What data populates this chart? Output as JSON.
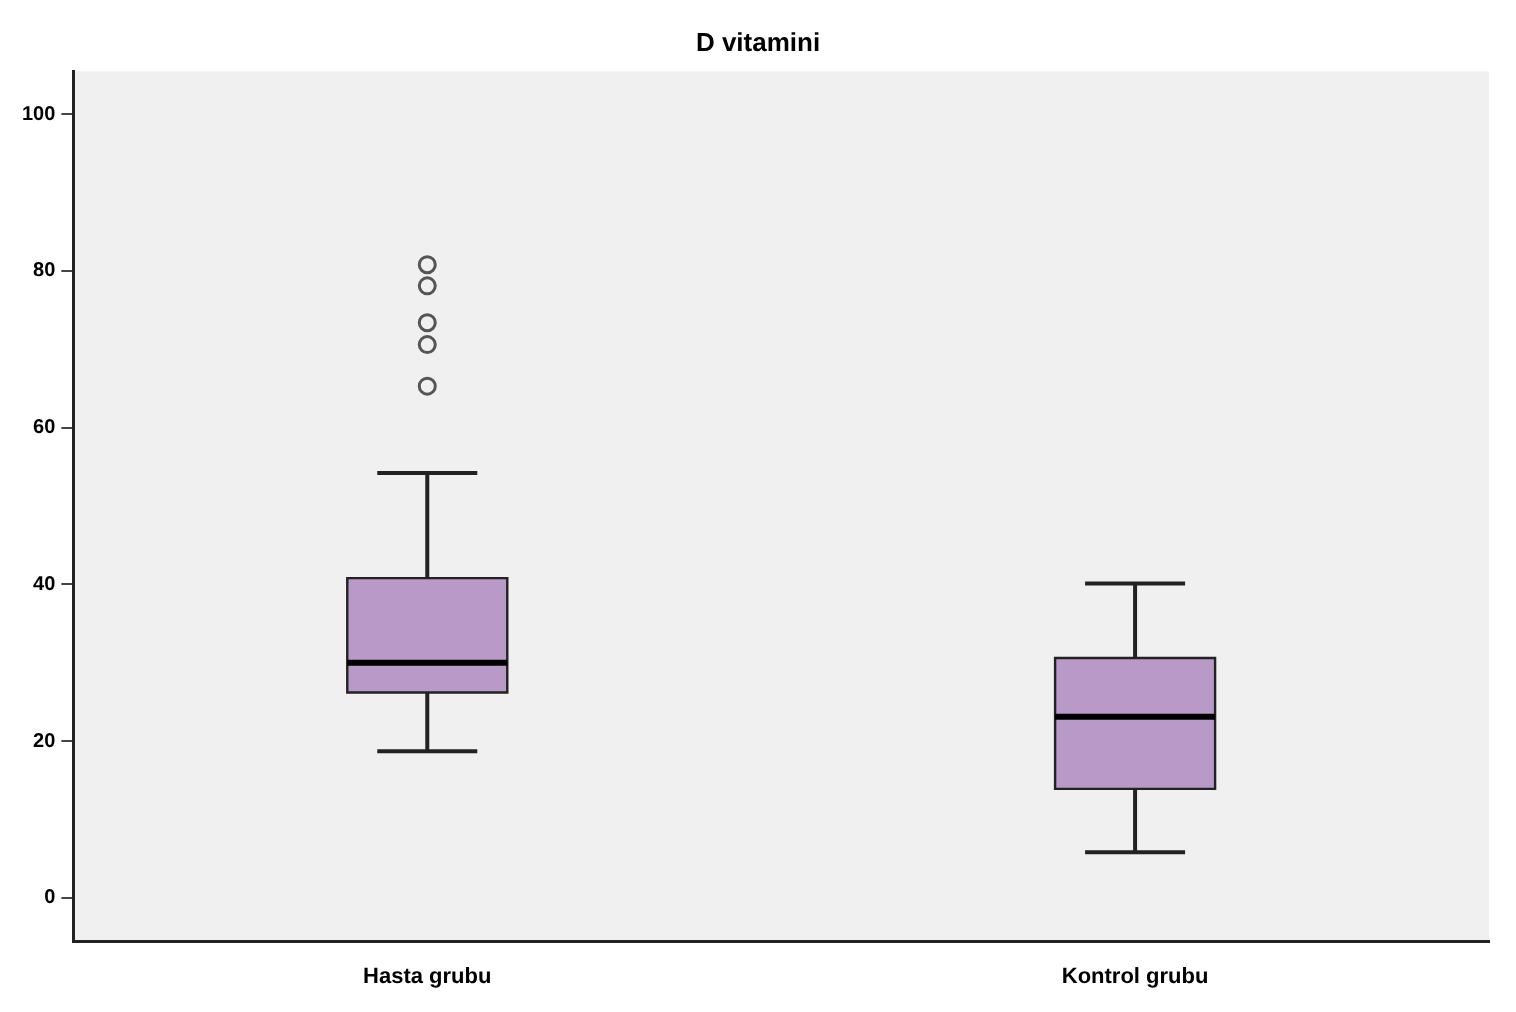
{
  "chart_data": {
    "type": "box",
    "title": "D vitamini",
    "categories": [
      "Hasta grubu",
      "Kontrol grubu"
    ],
    "color": "#b899c8",
    "boxes": [
      {
        "low": 18.7,
        "q1": 26.2,
        "median": 30.0,
        "q3": 40.8,
        "high": 54.2,
        "outliers": [
          65.3,
          70.6,
          73.4,
          78.1,
          80.8
        ]
      },
      {
        "low": 5.8,
        "q1": 13.9,
        "median": 23.1,
        "q3": 30.6,
        "high": 40.1
      }
    ],
    "ylim": [
      -5.6,
      105.5
    ],
    "yticks": [
      0,
      20,
      40,
      60,
      80,
      100
    ],
    "grid": false,
    "legend": false
  }
}
